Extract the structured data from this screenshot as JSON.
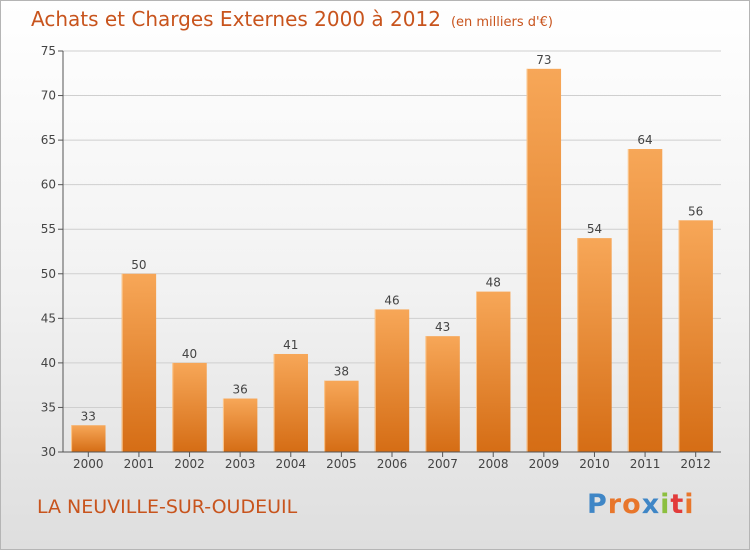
{
  "header": {
    "title": "Achats et Charges Externes 2000 à 2012",
    "unit": "(en milliers d'€)"
  },
  "footer": {
    "place": "LA NEUVILLE-SUR-OUDEUIL",
    "logo": "Proxiti",
    "logo_colors": [
      "#3f86c6",
      "#e8762b",
      "#e8762b",
      "#3f86c6",
      "#8cbf3f",
      "#e23b3b",
      "#e8762b"
    ]
  },
  "colors": {
    "bar_top": "#f7a758",
    "bar_bottom": "#d56d15",
    "text": "#c8541d",
    "grid": "#cfcfcf"
  },
  "chart_data": {
    "type": "bar",
    "title": "Achats et Charges Externes 2000 à 2012",
    "ylabel": "",
    "xlabel": "",
    "categories": [
      "2000",
      "2001",
      "2002",
      "2003",
      "2004",
      "2005",
      "2006",
      "2007",
      "2008",
      "2009",
      "2010",
      "2011",
      "2012"
    ],
    "values": [
      33,
      50,
      40,
      36,
      41,
      38,
      46,
      43,
      48,
      73,
      54,
      64,
      56
    ],
    "ylim": [
      30,
      75
    ],
    "yticks": [
      30,
      35,
      40,
      45,
      50,
      55,
      60,
      65,
      70,
      75
    ],
    "grid": true,
    "data_labels": true
  }
}
